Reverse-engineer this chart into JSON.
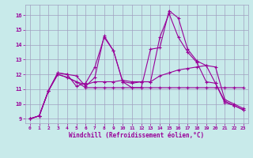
{
  "xlabel": "Windchill (Refroidissement éolien,°C)",
  "xlim": [
    -0.5,
    23.5
  ],
  "ylim": [
    8.7,
    16.7
  ],
  "yticks": [
    9,
    10,
    11,
    12,
    13,
    14,
    15,
    16
  ],
  "xticks": [
    0,
    1,
    2,
    3,
    4,
    5,
    6,
    7,
    8,
    9,
    10,
    11,
    12,
    13,
    14,
    15,
    16,
    17,
    18,
    19,
    20,
    21,
    22,
    23
  ],
  "bg_color": "#c8eaea",
  "line_color": "#990099",
  "grid_color": "#a0a0c0",
  "lines": [
    {
      "x": [
        0,
        1,
        2,
        3,
        4,
        5,
        6,
        7,
        8,
        9,
        10,
        11,
        12,
        13,
        14,
        15,
        16,
        17,
        18,
        19,
        20,
        21,
        22,
        23
      ],
      "y": [
        9.0,
        9.2,
        10.9,
        12.1,
        12.0,
        11.9,
        11.2,
        11.8,
        14.6,
        13.6,
        11.5,
        11.1,
        11.1,
        13.7,
        13.8,
        16.3,
        15.8,
        13.7,
        12.9,
        12.6,
        11.4,
        10.2,
        9.9,
        9.6
      ]
    },
    {
      "x": [
        0,
        1,
        2,
        3,
        4,
        5,
        6,
        7,
        8,
        9,
        10,
        11,
        12,
        13,
        14,
        15,
        16,
        17,
        18,
        19,
        20,
        21,
        22,
        23
      ],
      "y": [
        9.0,
        9.2,
        10.9,
        12.1,
        12.0,
        11.2,
        11.4,
        12.5,
        14.5,
        13.6,
        11.5,
        11.4,
        11.5,
        11.5,
        14.5,
        16.1,
        14.5,
        13.5,
        12.8,
        11.5,
        11.4,
        10.1,
        9.9,
        9.6
      ]
    },
    {
      "x": [
        0,
        1,
        2,
        3,
        4,
        5,
        6,
        7,
        8,
        9,
        10,
        11,
        12,
        13,
        14,
        15,
        16,
        17,
        18,
        19,
        20,
        21,
        22,
        23
      ],
      "y": [
        9.0,
        9.2,
        10.9,
        12.0,
        11.8,
        11.5,
        11.3,
        11.5,
        11.5,
        11.5,
        11.6,
        11.5,
        11.5,
        11.5,
        11.9,
        12.1,
        12.3,
        12.4,
        12.5,
        12.6,
        12.5,
        10.3,
        10.0,
        9.7
      ]
    },
    {
      "x": [
        0,
        1,
        2,
        3,
        4,
        5,
        6,
        7,
        8,
        9,
        10,
        11,
        12,
        13,
        14,
        15,
        16,
        17,
        18,
        19,
        20,
        21,
        22,
        23
      ],
      "y": [
        9.0,
        9.2,
        10.9,
        12.0,
        11.8,
        11.5,
        11.1,
        11.1,
        11.1,
        11.1,
        11.1,
        11.1,
        11.1,
        11.1,
        11.1,
        11.1,
        11.1,
        11.1,
        11.1,
        11.1,
        11.1,
        11.1,
        11.1,
        11.1
      ]
    }
  ]
}
